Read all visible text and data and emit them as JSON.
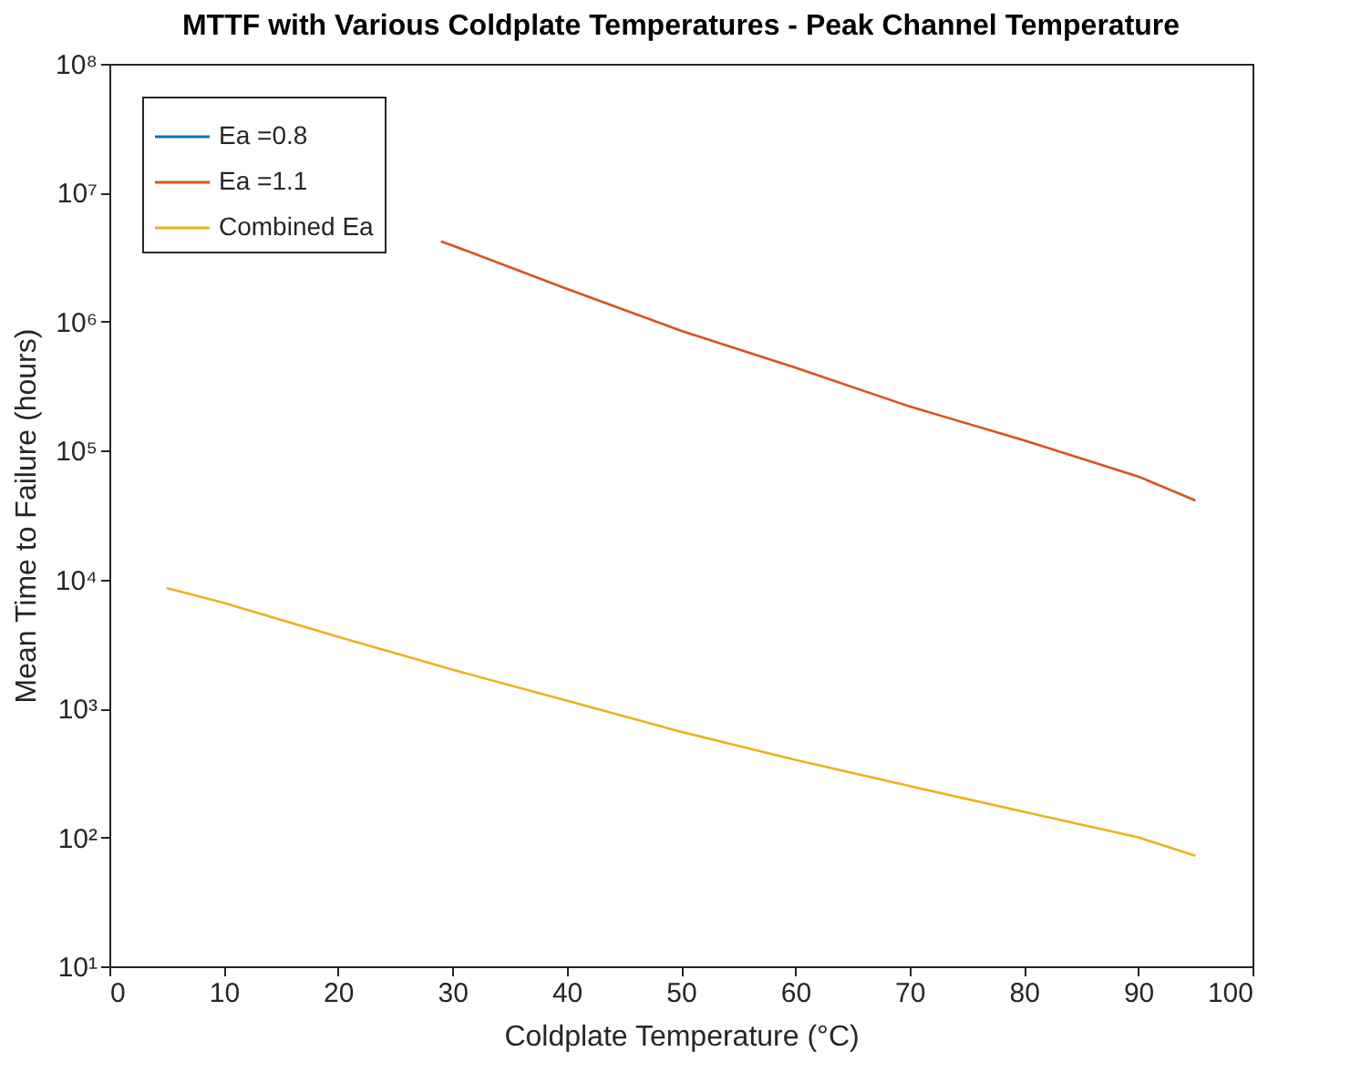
{
  "chart_data": {
    "type": "line",
    "title": "MTTF with Various Coldplate Temperatures - Peak Channel Temperature",
    "xlabel": "Coldplate Temperature (°C)",
    "ylabel": "Mean Time to Failure (hours)",
    "x": [
      5,
      10,
      20,
      30,
      40,
      50,
      60,
      70,
      80,
      90,
      95
    ],
    "series": [
      {
        "name": "Ea =0.8",
        "color": "#0072bd",
        "values": [
          null,
          null,
          null,
          null,
          null,
          null,
          null,
          null,
          null,
          null,
          null
        ]
      },
      {
        "name": "Ea =1.1",
        "color": "#d95319",
        "x": [
          29,
          30,
          40,
          50,
          60,
          70,
          80,
          90,
          95
        ],
        "values": [
          4200000,
          3900000,
          1800000,
          850000,
          440000,
          220000,
          120000,
          63000,
          41000
        ]
      },
      {
        "name": "Combined Ea",
        "color": "#edb120",
        "values": [
          8600,
          6600,
          3600,
          2000,
          1150,
          660,
          400,
          250,
          158,
          100,
          72
        ]
      }
    ],
    "log": "y",
    "xlim": [
      0,
      100
    ],
    "xticks": [
      0,
      10,
      20,
      30,
      40,
      50,
      60,
      70,
      80,
      90,
      100
    ],
    "ylim": [
      10,
      100000000
    ],
    "yticks": [
      {
        "value": 10,
        "label": "10¹"
      },
      {
        "value": 100,
        "label": "10²"
      },
      {
        "value": 1000,
        "label": "10³"
      },
      {
        "value": 10000,
        "label": "10⁴"
      },
      {
        "value": 100000,
        "label": "10⁵"
      },
      {
        "value": 1000000,
        "label": "10⁶"
      },
      {
        "value": 10000000,
        "label": "10⁷"
      },
      {
        "value": 100000000,
        "label": "10⁸"
      }
    ],
    "grid": false,
    "legend": "top left",
    "line_style": "solid"
  }
}
